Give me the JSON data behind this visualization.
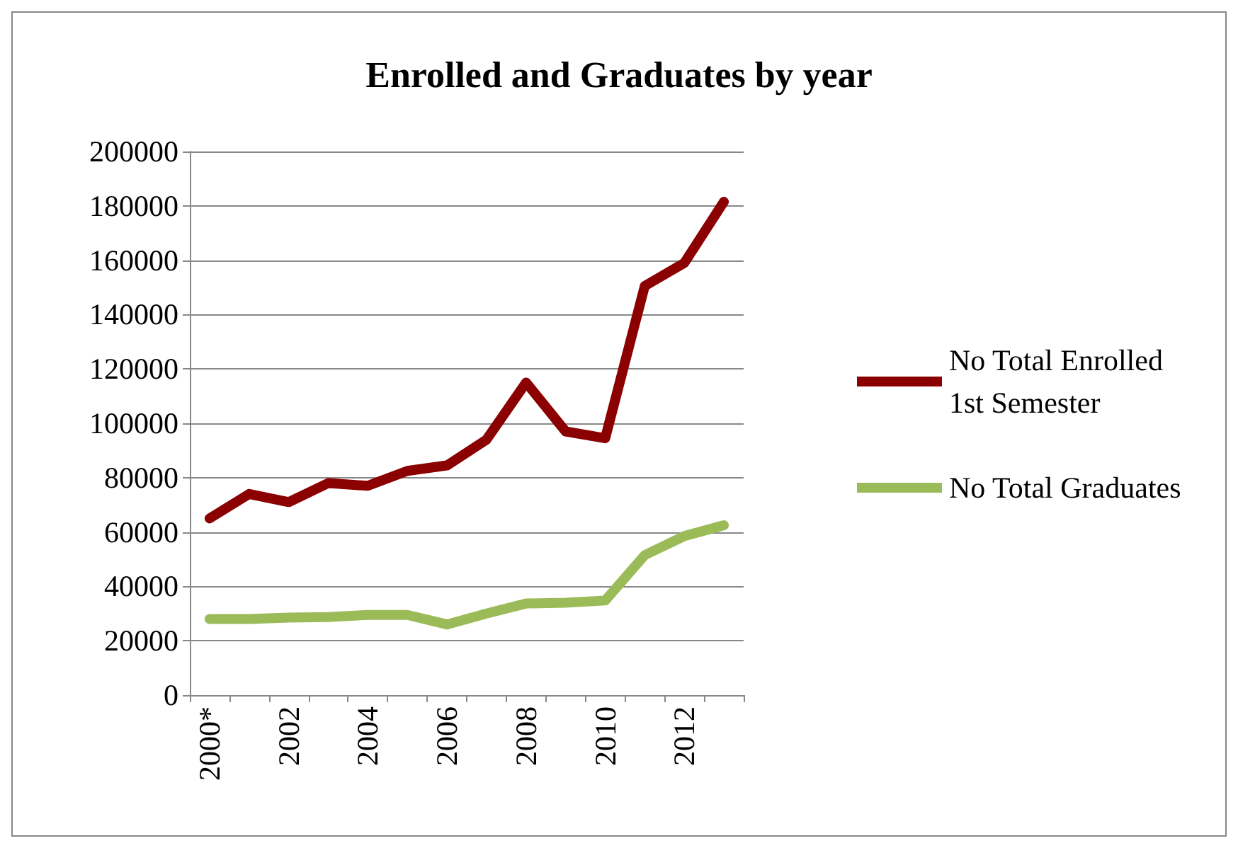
{
  "chart_data": {
    "type": "line",
    "title": "Enrolled and Graduates by year",
    "categories": [
      "2000*",
      null,
      "2002",
      null,
      "2004",
      null,
      "2006",
      null,
      "2008",
      null,
      "2010",
      null,
      "2012",
      null
    ],
    "series": [
      {
        "name": "No Total Enrolled 1st Semester",
        "color": "#8b0000",
        "values": [
          65000,
          74000,
          71000,
          78000,
          77000,
          82500,
          84500,
          94000,
          115000,
          97000,
          94500,
          150500,
          159000,
          181500
        ]
      },
      {
        "name": "No Total Graduates",
        "color": "#9bbb59",
        "values": [
          28000,
          28000,
          28500,
          28700,
          29500,
          29500,
          26000,
          30000,
          33700,
          34000,
          34800,
          51500,
          58500,
          62500
        ]
      }
    ],
    "ylim": [
      0,
      200000
    ],
    "yticks": [
      0,
      20000,
      40000,
      60000,
      80000,
      100000,
      120000,
      140000,
      160000,
      180000,
      200000
    ],
    "grid": "y",
    "legend": "right",
    "line_style": "solid"
  }
}
